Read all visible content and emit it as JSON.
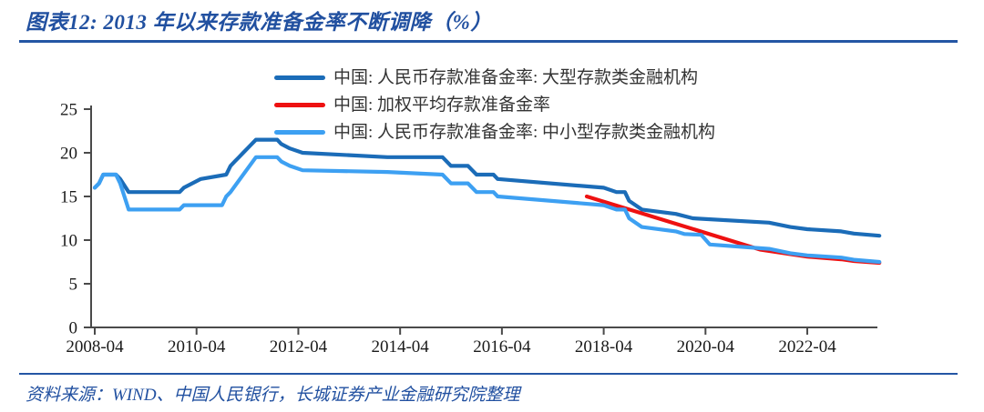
{
  "header": {
    "title": "图表12:  2013 年以来存款准备金率不断调降（%）"
  },
  "footer": {
    "source": "资料来源：WIND、中国人民银行，长城证券产业金融研究院整理"
  },
  "colors": {
    "accent_blue": "#2150A0",
    "rule_blue": "#2456A4",
    "axis_gray": "#4a4a4a"
  },
  "chart_data": {
    "type": "line",
    "title": "2013 年以来存款准备金率不断调降",
    "unit": "%",
    "grid": false,
    "legend_position": "top-center",
    "ylim": [
      0,
      25
    ],
    "y_ticks": [
      0,
      5,
      10,
      15,
      20,
      25
    ],
    "x_ticks": [
      "2008-04",
      "2010-04",
      "2012-04",
      "2014-04",
      "2016-04",
      "2018-04",
      "2020-04",
      "2022-04"
    ],
    "x_range": [
      "2008-04",
      "2023-09"
    ],
    "series": [
      {
        "key": "large-institutions",
        "name": "中国: 人民币存款准备金率: 大型存款类金融机构",
        "color": "#1B6CB8",
        "points": [
          [
            "2008-04",
            16
          ],
          [
            "2008-05",
            16.5
          ],
          [
            "2008-06",
            17.5
          ],
          [
            "2008-09",
            17.5
          ],
          [
            "2008-10",
            17
          ],
          [
            "2008-12",
            15.5
          ],
          [
            "2009-12",
            15.5
          ],
          [
            "2010-01",
            16
          ],
          [
            "2010-05",
            17
          ],
          [
            "2010-11",
            17.5
          ],
          [
            "2010-12",
            18.5
          ],
          [
            "2011-01",
            19
          ],
          [
            "2011-02",
            19.5
          ],
          [
            "2011-03",
            20
          ],
          [
            "2011-04",
            20.5
          ],
          [
            "2011-05",
            21
          ],
          [
            "2011-06",
            21.5
          ],
          [
            "2011-11",
            21.5
          ],
          [
            "2011-12",
            21
          ],
          [
            "2012-02",
            20.5
          ],
          [
            "2012-05",
            20
          ],
          [
            "2014-01",
            19.5
          ],
          [
            "2015-02",
            19.5
          ],
          [
            "2015-04",
            18.5
          ],
          [
            "2015-08",
            18.5
          ],
          [
            "2015-09",
            18
          ],
          [
            "2015-10",
            17.5
          ],
          [
            "2016-02",
            17.5
          ],
          [
            "2016-03",
            17
          ],
          [
            "2018-04",
            16
          ],
          [
            "2018-07",
            15.5
          ],
          [
            "2018-09",
            15.5
          ],
          [
            "2018-10",
            14.5
          ],
          [
            "2019-01",
            13.5
          ],
          [
            "2019-09",
            13
          ],
          [
            "2020-01",
            12.5
          ],
          [
            "2021-07",
            12
          ],
          [
            "2021-12",
            11.5
          ],
          [
            "2022-04",
            11.25
          ],
          [
            "2022-12",
            11
          ],
          [
            "2023-03",
            10.75
          ],
          [
            "2023-09",
            10.5
          ]
        ]
      },
      {
        "key": "weighted-average",
        "name": "中国: 加权平均存款准备金率",
        "color": "#EE1111",
        "points": [
          [
            "2017-12",
            15
          ],
          [
            "2021-05",
            8.9
          ],
          [
            "2021-12",
            8.4
          ],
          [
            "2022-04",
            8.1
          ],
          [
            "2022-12",
            7.8
          ],
          [
            "2023-03",
            7.6
          ],
          [
            "2023-09",
            7.4
          ]
        ]
      },
      {
        "key": "small-medium-institutions",
        "name": "中国: 人民币存款准备金率: 中小型存款类金融机构",
        "color": "#3DA0F2",
        "points": [
          [
            "2008-04",
            16
          ],
          [
            "2008-05",
            16.5
          ],
          [
            "2008-06",
            17.5
          ],
          [
            "2008-09",
            17.5
          ],
          [
            "2008-10",
            16.5
          ],
          [
            "2008-12",
            13.5
          ],
          [
            "2009-12",
            13.5
          ],
          [
            "2010-01",
            14
          ],
          [
            "2010-10",
            14
          ],
          [
            "2010-11",
            15
          ],
          [
            "2010-12",
            15.5
          ],
          [
            "2011-06",
            19.5
          ],
          [
            "2011-11",
            19.5
          ],
          [
            "2011-12",
            19
          ],
          [
            "2012-02",
            18.5
          ],
          [
            "2012-05",
            18
          ],
          [
            "2014-01",
            17.8
          ],
          [
            "2015-02",
            17.5
          ],
          [
            "2015-04",
            16.5
          ],
          [
            "2015-08",
            16.5
          ],
          [
            "2015-09",
            16
          ],
          [
            "2015-10",
            15.5
          ],
          [
            "2016-02",
            15.5
          ],
          [
            "2016-03",
            15
          ],
          [
            "2018-04",
            14
          ],
          [
            "2018-07",
            13.5
          ],
          [
            "2018-09",
            13.5
          ],
          [
            "2018-10",
            12.5
          ],
          [
            "2019-01",
            11.5
          ],
          [
            "2019-09",
            11
          ],
          [
            "2019-11",
            10.7
          ],
          [
            "2020-03",
            10.6
          ],
          [
            "2020-05",
            9.5
          ],
          [
            "2021-07",
            9
          ],
          [
            "2021-12",
            8.5
          ],
          [
            "2022-04",
            8.25
          ],
          [
            "2022-12",
            8
          ],
          [
            "2023-03",
            7.75
          ],
          [
            "2023-09",
            7.5
          ]
        ]
      }
    ]
  }
}
